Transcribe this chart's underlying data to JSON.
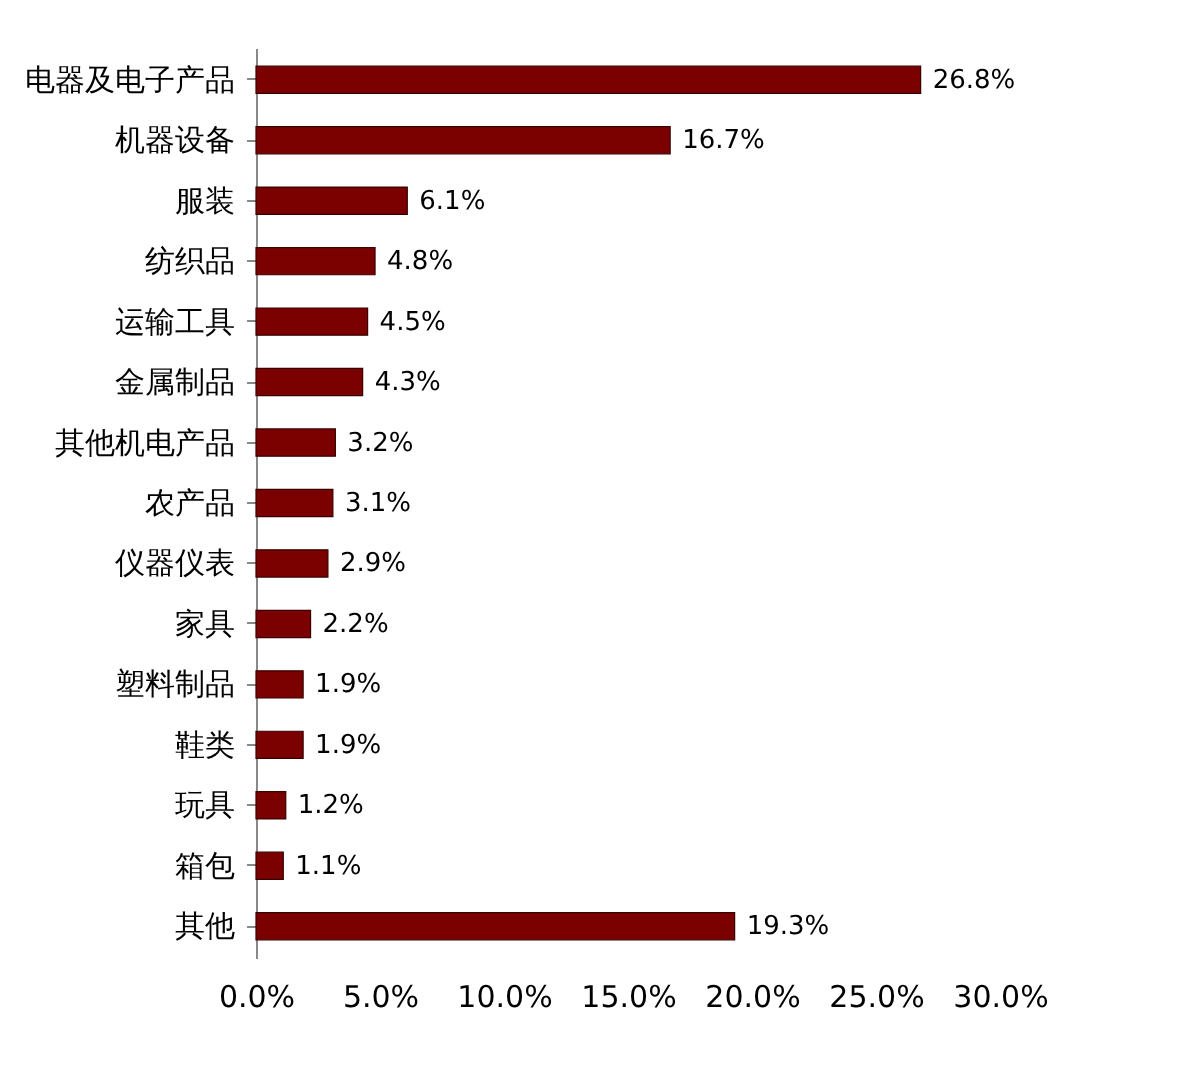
{
  "chart_data": {
    "type": "bar",
    "orientation": "horizontal",
    "categories": [
      "电器及电子产品",
      "机器设备",
      "服装",
      "纺织品",
      "运输工具",
      "金属制品",
      "其他机电产品",
      "农产品",
      "仪器仪表",
      "家具",
      "塑料制品",
      "鞋类",
      "玩具",
      "箱包",
      "其他"
    ],
    "values": [
      26.8,
      16.7,
      6.1,
      4.8,
      4.5,
      4.3,
      3.2,
      3.1,
      2.9,
      2.2,
      1.9,
      1.9,
      1.2,
      1.1,
      19.3
    ],
    "value_labels": [
      "26.8%",
      "16.7%",
      "6.1%",
      "4.8%",
      "4.5%",
      "4.3%",
      "3.2%",
      "3.1%",
      "2.9%",
      "2.2%",
      "1.9%",
      "1.9%",
      "1.2%",
      "1.1%",
      "19.3%"
    ],
    "color": "#7b0000",
    "xlim": [
      0,
      30
    ],
    "xticks": [
      {
        "value": 0,
        "label": "0.0%"
      },
      {
        "value": 5,
        "label": "5.0%"
      },
      {
        "value": 10,
        "label": "10.0%"
      },
      {
        "value": 15,
        "label": "15.0%"
      },
      {
        "value": 20,
        "label": "20.0%"
      },
      {
        "value": 25,
        "label": "25.0%"
      },
      {
        "value": 30,
        "label": "30.0%"
      }
    ],
    "grid": false
  }
}
